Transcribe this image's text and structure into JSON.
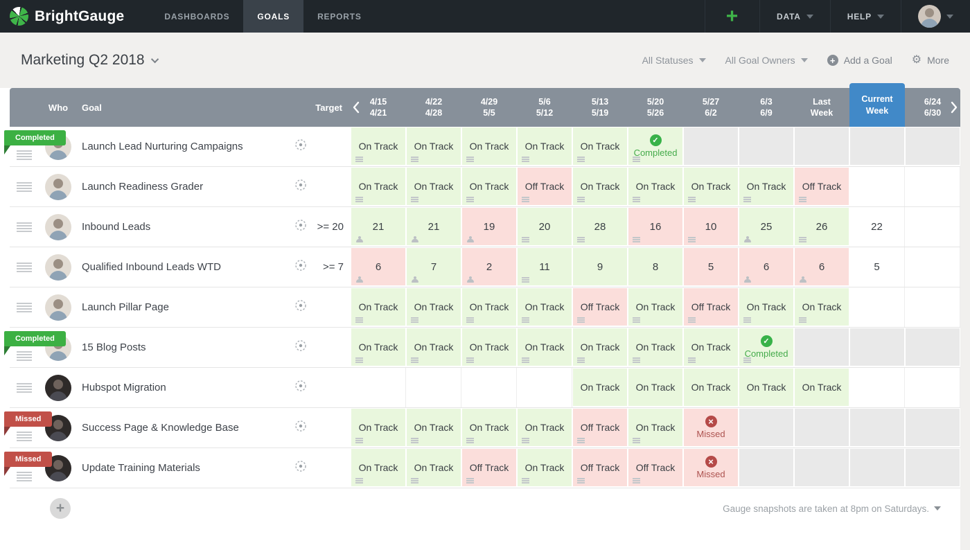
{
  "nav": {
    "brand": "BrightGauge",
    "tabs": [
      {
        "label": "DASHBOARDS",
        "active": false
      },
      {
        "label": "GOALS",
        "active": true
      },
      {
        "label": "REPORTS",
        "active": false
      }
    ],
    "data_menu": "DATA",
    "help_menu": "HELP"
  },
  "toolbar": {
    "title": "Marketing Q2 2018",
    "status_filter": "All Statuses",
    "owner_filter": "All Goal Owners",
    "add_goal": "Add a Goal",
    "more": "More"
  },
  "icons": {
    "nav_quick_add": "plus-icon",
    "menus": "chevron-down-icon",
    "add_goal": "plus-circle-icon",
    "more": "gear-icon",
    "target": "target-crosshair-icon",
    "drag": "hamburger-icon",
    "cell_note": "note-lines-icon",
    "cell_person": "person-icon",
    "completed": "check-circle-icon",
    "missed": "x-circle-icon",
    "week_nav": "chevron-left-icon / chevron-right-icon"
  },
  "colors": {
    "header_bg": "#87909A",
    "current_week_blue": "#4189C8",
    "cell_good_bg": "#E9F7DD",
    "cell_bad_bg": "#FBDEDB",
    "cell_disabled_bg": "#E9E9E9",
    "completed_green": "#38B249",
    "missed_red": "#B54A48",
    "badge_completed": "#3CB043",
    "badge_missed": "#C15048",
    "brand_green": "#3FB549"
  },
  "table": {
    "who_header": "Who",
    "goal_header": "Goal",
    "target_header": "Target",
    "weeks": [
      {
        "line1": "4/15",
        "line2": "4/21",
        "current": false
      },
      {
        "line1": "4/22",
        "line2": "4/28",
        "current": false
      },
      {
        "line1": "4/29",
        "line2": "5/5",
        "current": false
      },
      {
        "line1": "5/6",
        "line2": "5/12",
        "current": false
      },
      {
        "line1": "5/13",
        "line2": "5/19",
        "current": false
      },
      {
        "line1": "5/20",
        "line2": "5/26",
        "current": false
      },
      {
        "line1": "5/27",
        "line2": "6/2",
        "current": false
      },
      {
        "line1": "6/3",
        "line2": "6/9",
        "current": false
      },
      {
        "line1": "Last",
        "line2": "Week",
        "current": false
      },
      {
        "line1": "Current",
        "line2": "Week",
        "current": true
      },
      {
        "line1": "6/24",
        "line2": "6/30",
        "current": false
      }
    ],
    "status_labels": {
      "on": "On Track",
      "off": "Off Track",
      "completed": "Completed",
      "missed": "Missed"
    },
    "badge_labels": {
      "completed": "Completed",
      "missed": "Missed"
    },
    "rows": [
      {
        "badge": "completed",
        "goal": "Launch Lead Nurturing Campaigns",
        "target": "",
        "avatar": "light",
        "cells": [
          {
            "s": "on",
            "icon": "note"
          },
          {
            "s": "on",
            "icon": "note"
          },
          {
            "s": "on",
            "icon": "note"
          },
          {
            "s": "on",
            "icon": "note"
          },
          {
            "s": "on",
            "icon": "note"
          },
          {
            "s": "completed",
            "icon": "note"
          },
          {
            "s": "gray"
          },
          {
            "s": "gray"
          },
          {
            "s": "gray"
          },
          {
            "s": "gray"
          },
          {
            "s": "gray"
          }
        ]
      },
      {
        "badge": "",
        "goal": "Launch Readiness Grader",
        "target": "",
        "avatar": "light",
        "cells": [
          {
            "s": "on",
            "icon": "note"
          },
          {
            "s": "on",
            "icon": "note"
          },
          {
            "s": "on",
            "icon": "note"
          },
          {
            "s": "off",
            "icon": "note"
          },
          {
            "s": "on",
            "icon": "note"
          },
          {
            "s": "on",
            "icon": "note"
          },
          {
            "s": "on",
            "icon": "note"
          },
          {
            "s": "on",
            "icon": "note"
          },
          {
            "s": "off",
            "icon": "note"
          },
          {
            "s": "empty"
          },
          {
            "s": "empty"
          }
        ]
      },
      {
        "badge": "",
        "goal": "Inbound Leads",
        "target": ">= 20",
        "avatar": "light",
        "cells": [
          {
            "s": "num",
            "v": "21",
            "tone": "good",
            "icon": "person"
          },
          {
            "s": "num",
            "v": "21",
            "tone": "good",
            "icon": "person"
          },
          {
            "s": "num",
            "v": "19",
            "tone": "bad",
            "icon": "person"
          },
          {
            "s": "num",
            "v": "20",
            "tone": "good",
            "icon": "note"
          },
          {
            "s": "num",
            "v": "28",
            "tone": "good",
            "icon": "note"
          },
          {
            "s": "num",
            "v": "16",
            "tone": "bad",
            "icon": "note"
          },
          {
            "s": "num",
            "v": "10",
            "tone": "bad",
            "icon": "note"
          },
          {
            "s": "num",
            "v": "25",
            "tone": "good",
            "icon": "person"
          },
          {
            "s": "num",
            "v": "26",
            "tone": "good",
            "icon": "note"
          },
          {
            "s": "num",
            "v": "22",
            "tone": "plain"
          },
          {
            "s": "empty"
          }
        ]
      },
      {
        "badge": "",
        "goal": "Qualified Inbound Leads WTD",
        "target": ">= 7",
        "avatar": "light",
        "cells": [
          {
            "s": "num",
            "v": "6",
            "tone": "bad",
            "icon": "person"
          },
          {
            "s": "num",
            "v": "7",
            "tone": "good",
            "icon": "person"
          },
          {
            "s": "num",
            "v": "2",
            "tone": "bad",
            "icon": "person"
          },
          {
            "s": "num",
            "v": "11",
            "tone": "good",
            "icon": "note"
          },
          {
            "s": "num",
            "v": "9",
            "tone": "good"
          },
          {
            "s": "num",
            "v": "8",
            "tone": "good"
          },
          {
            "s": "num",
            "v": "5",
            "tone": "bad"
          },
          {
            "s": "num",
            "v": "6",
            "tone": "bad",
            "icon": "person"
          },
          {
            "s": "num",
            "v": "6",
            "tone": "bad",
            "icon": "person"
          },
          {
            "s": "num",
            "v": "5",
            "tone": "plain"
          },
          {
            "s": "empty"
          }
        ]
      },
      {
        "badge": "",
        "goal": "Launch Pillar Page",
        "target": "",
        "avatar": "light",
        "cells": [
          {
            "s": "on",
            "icon": "note"
          },
          {
            "s": "on",
            "icon": "note"
          },
          {
            "s": "on",
            "icon": "note"
          },
          {
            "s": "on",
            "icon": "note"
          },
          {
            "s": "off",
            "icon": "note"
          },
          {
            "s": "on",
            "icon": "note"
          },
          {
            "s": "off",
            "icon": "note"
          },
          {
            "s": "on",
            "icon": "note"
          },
          {
            "s": "on",
            "icon": "note"
          },
          {
            "s": "empty"
          },
          {
            "s": "empty"
          }
        ]
      },
      {
        "badge": "completed",
        "goal": "15 Blog Posts",
        "target": "",
        "avatar": "light",
        "cells": [
          {
            "s": "on",
            "icon": "note"
          },
          {
            "s": "on",
            "icon": "note"
          },
          {
            "s": "on",
            "icon": "note"
          },
          {
            "s": "on",
            "icon": "note"
          },
          {
            "s": "on",
            "icon": "note"
          },
          {
            "s": "on",
            "icon": "note"
          },
          {
            "s": "on",
            "icon": "note"
          },
          {
            "s": "completed",
            "icon": "note"
          },
          {
            "s": "gray"
          },
          {
            "s": "gray"
          },
          {
            "s": "gray"
          }
        ]
      },
      {
        "badge": "",
        "goal": "Hubspot Migration",
        "target": "",
        "avatar": "dark",
        "cells": [
          {
            "s": "empty"
          },
          {
            "s": "empty"
          },
          {
            "s": "empty"
          },
          {
            "s": "empty"
          },
          {
            "s": "on"
          },
          {
            "s": "on"
          },
          {
            "s": "on"
          },
          {
            "s": "on"
          },
          {
            "s": "on"
          },
          {
            "s": "empty"
          },
          {
            "s": "empty"
          }
        ]
      },
      {
        "badge": "missed",
        "goal": "Success Page & Knowledge Base",
        "target": "",
        "avatar": "dark",
        "cells": [
          {
            "s": "on",
            "icon": "note"
          },
          {
            "s": "on",
            "icon": "note"
          },
          {
            "s": "on",
            "icon": "note"
          },
          {
            "s": "on",
            "icon": "note"
          },
          {
            "s": "off",
            "icon": "note"
          },
          {
            "s": "on",
            "icon": "note"
          },
          {
            "s": "missed"
          },
          {
            "s": "gray"
          },
          {
            "s": "gray"
          },
          {
            "s": "gray"
          },
          {
            "s": "gray"
          }
        ]
      },
      {
        "badge": "missed",
        "goal": "Update Training Materials",
        "target": "",
        "avatar": "dark",
        "cells": [
          {
            "s": "on",
            "icon": "note"
          },
          {
            "s": "on",
            "icon": "note"
          },
          {
            "s": "off",
            "icon": "note"
          },
          {
            "s": "on",
            "icon": "note"
          },
          {
            "s": "off",
            "icon": "note"
          },
          {
            "s": "off",
            "icon": "note"
          },
          {
            "s": "missed"
          },
          {
            "s": "gray"
          },
          {
            "s": "gray"
          },
          {
            "s": "gray"
          },
          {
            "s": "gray"
          }
        ]
      }
    ]
  },
  "footer": {
    "note": "Gauge snapshots are taken at 8pm on Saturdays."
  }
}
